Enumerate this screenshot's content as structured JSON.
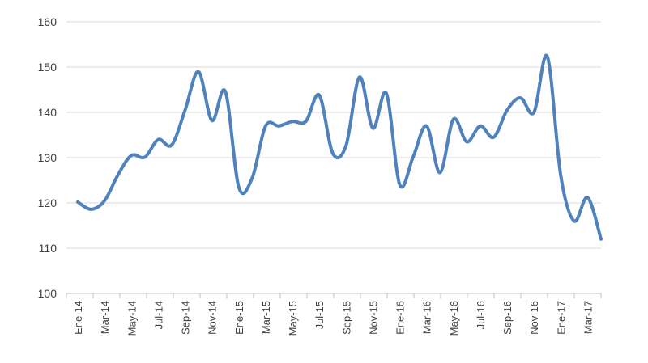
{
  "chart_data": {
    "type": "line",
    "title": "",
    "xlabel": "",
    "ylabel": "",
    "ylim": [
      100,
      160
    ],
    "yticks": [
      100,
      110,
      120,
      130,
      140,
      150,
      160
    ],
    "grid": "horizontal",
    "legend": "none",
    "line_color": "#4f81bd",
    "categories": [
      "Ene-14",
      "Feb-14",
      "Mar-14",
      "Abr-14",
      "May-14",
      "Jun-14",
      "Jul-14",
      "Ago-14",
      "Sep-14",
      "Oct-14",
      "Nov-14",
      "Dic-14",
      "Ene-15",
      "Feb-15",
      "Mar-15",
      "Abr-15",
      "May-15",
      "Jun-15",
      "Jul-15",
      "Ago-15",
      "Sep-15",
      "Oct-15",
      "Nov-15",
      "Dic-15",
      "Ene-16",
      "Feb-16",
      "Mar-16",
      "Abr-16",
      "May-16",
      "Jun-16",
      "Jul-16",
      "Ago-16",
      "Sep-16",
      "Oct-16",
      "Nov-16",
      "Dic-16",
      "Ene-17",
      "Feb-17",
      "Mar-17",
      "Abr-17"
    ],
    "x_tick_labels": [
      "Ene-14",
      "Mar-14",
      "May-14",
      "Jul-14",
      "Sep-14",
      "Nov-14",
      "Ene-15",
      "Mar-15",
      "May-15",
      "Jul-15",
      "Sep-15",
      "Nov-15",
      "Ene-16",
      "Mar-16",
      "May-16",
      "Jul-16",
      "Sep-16",
      "Nov-16",
      "Ene-17",
      "Mar-17"
    ],
    "values": [
      120.2,
      118.6,
      120.5,
      126.2,
      130.5,
      130.1,
      134.0,
      132.8,
      140.5,
      149.0,
      138.2,
      144.6,
      123.5,
      125.5,
      137.0,
      137.0,
      138.0,
      138.0,
      143.8,
      131.0,
      132.7,
      147.8,
      136.5,
      144.2,
      124.0,
      130.2,
      137.0,
      126.7,
      138.5,
      133.5,
      137.0,
      134.5,
      140.5,
      143.2,
      140.0,
      152.3,
      126.0,
      116.0,
      121.2,
      112.0
    ]
  }
}
